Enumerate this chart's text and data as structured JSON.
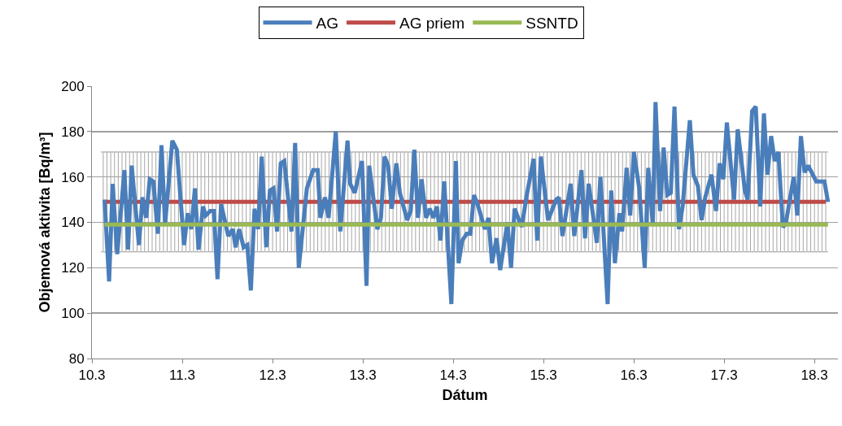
{
  "chart_data": {
    "type": "line",
    "xlabel": "Dátum",
    "ylabel": "Objemová aktivita [Bq/m³]",
    "xlim": [
      "--03-10",
      "--03-18T06:14"
    ],
    "xticks": [
      {
        "value": "--03-10",
        "label": "10.3"
      },
      {
        "value": "--03-11",
        "label": "11.3"
      },
      {
        "value": "--03-12",
        "label": "12.3"
      },
      {
        "value": "--03-13",
        "label": "13.3"
      },
      {
        "value": "--03-14",
        "label": "14.3"
      },
      {
        "value": "--03-15",
        "label": "15.3"
      },
      {
        "value": "--03-16",
        "label": "16.3"
      },
      {
        "value": "--03-17",
        "label": "17.3"
      },
      {
        "value": "--03-18",
        "label": "18.3"
      }
    ],
    "ylim": [
      80,
      200
    ],
    "yticks": [
      80,
      100,
      120,
      140,
      160,
      180,
      200
    ],
    "grid": "y",
    "legend": "top",
    "marker": "none",
    "line_style": "solid",
    "series": [
      {
        "name": "AG",
        "color": "#4a7ebb",
        "x": [
          "--03-10T03:22",
          "--03-10T04:34",
          "--03-10T05:31",
          "--03-10T06:43",
          "--03-10T08:38",
          "--03-10T09:36",
          "--03-10T10:34",
          "--03-10T12:29",
          "--03-10T13:26",
          "--03-10T14:24",
          "--03-10T15:22",
          "--03-10T16:19",
          "--03-10T17:31",
          "--03-10T18:29",
          "--03-10T19:26",
          "--03-10T21:22",
          "--03-10T22:34",
          "--03-11T00:29",
          "--03-11T01:26",
          "--03-11T02:24",
          "--03-11T03:22",
          "--03-11T04:19",
          "--03-11T05:31",
          "--03-11T06:14",
          "--03-11T07:26",
          "--03-11T08:24",
          "--03-11T09:22",
          "--03-11T10:19",
          "--03-11T12:14",
          "--03-11T13:26",
          "--03-11T14:10",
          "--03-11T15:07",
          "--03-11T16:19",
          "--03-11T17:17",
          "--03-11T18:14",
          "--03-11T19:12",
          "--03-11T20:10",
          "--03-11T21:07",
          "--03-11T22:19",
          "--03-11T23:17",
          "--03-12T00:14",
          "--03-12T01:12",
          "--03-12T02:10",
          "--03-12T03:07",
          "--03-12T05:02",
          "--03-12T06:00",
          "--03-12T06:58",
          "--03-12T09:07",
          "--03-12T10:48",
          "--03-12T12:00",
          "--03-12T12:43",
          "--03-12T13:55",
          "--03-12T14:53",
          "--03-12T16:48",
          "--03-12T18:00",
          "--03-12T19:55",
          "--03-12T20:38",
          "--03-12T21:50",
          "--03-12T23:46",
          "--03-13T00:58",
          "--03-13T01:41",
          "--03-13T03:50",
          "--03-13T04:48",
          "--03-13T05:46",
          "--03-13T06:43",
          "--03-13T07:41",
          "--03-13T08:53",
          "--03-13T09:50",
          "--03-13T11:46",
          "--03-13T12:43",
          "--03-13T13:41",
          "--03-13T14:38",
          "--03-13T15:36",
          "--03-13T16:48",
          "--03-13T17:46",
          "--03-13T18:43",
          "--03-13T19:41",
          "--03-13T20:38",
          "--03-13T21:36",
          "--03-13T23:31",
          "--03-14T00:43",
          "--03-14T01:26",
          "--03-14T02:24",
          "--03-14T03:36",
          "--03-14T04:34",
          "--03-14T05:31",
          "--03-14T06:29",
          "--03-14T08:24",
          "--03-14T09:22",
          "--03-14T10:19",
          "--03-14T11:31",
          "--03-14T12:29",
          "--03-14T14:24",
          "--03-14T15:22",
          "--03-14T16:19",
          "--03-14T18:14",
          "--03-14T19:26",
          "--03-14T21:22",
          "--03-14T22:19",
          "--03-14T23:17",
          "--03-15T01:12",
          "--03-15T03:22",
          "--03-15T04:05",
          "--03-15T05:02",
          "--03-15T07:12",
          "--03-15T08:10",
          "--03-15T10:05",
          "--03-15T11:02",
          "--03-15T12:00",
          "--03-15T14:10",
          "--03-15T15:07",
          "--03-15T17:02",
          "--03-15T18:00",
          "--03-15T18:58",
          "--03-15T20:10",
          "--03-15T20:53",
          "--03-15T22:05",
          "--03-15T23:02",
          "--03-16T00:00",
          "--03-16T01:26",
          "--03-16T02:53",
          "--03-16T03:50",
          "--03-16T05:02",
          "--03-16T05:46",
          "--03-16T06:58",
          "--03-16T07:55",
          "--03-16T08:53",
          "--03-16T09:50",
          "--03-16T10:48",
          "--03-16T12:00",
          "--03-16T12:58",
          "--03-16T14:53",
          "--03-16T15:50",
          "--03-16T17:02",
          "--03-16T18:00",
          "--03-16T18:58",
          "--03-16T20:38",
          "--03-16T21:50",
          "--03-16T22:48",
          "--03-16T23:46",
          "--03-17T00:43",
          "--03-17T02:38",
          "--03-17T03:36",
          "--03-17T05:31",
          "--03-17T06:14",
          "--03-17T07:26",
          "--03-17T08:24",
          "--03-17T09:36",
          "--03-17T10:34",
          "--03-17T11:31",
          "--03-17T12:29",
          "--03-17T13:26",
          "--03-17T14:24",
          "--03-17T15:36",
          "--03-17T16:19",
          "--03-17T18:29",
          "--03-17T19:26",
          "--03-17T20:24",
          "--03-17T21:22",
          "--03-17T22:19",
          "--03-18T00:29",
          "--03-18T02:38",
          "--03-18T03:36"
        ],
        "values": [
          150,
          114,
          157,
          126,
          163,
          128,
          165,
          130,
          151,
          142,
          159,
          158,
          135,
          174,
          139,
          176,
          172,
          130,
          144,
          137,
          155,
          128,
          147,
          143,
          145,
          145,
          115,
          148,
          134,
          137,
          129,
          137,
          129,
          130,
          110,
          146,
          137,
          169,
          129,
          154,
          155,
          136,
          166,
          167,
          136,
          175,
          120,
          155,
          163,
          163,
          142,
          151,
          142,
          180,
          136,
          176,
          157,
          153,
          167,
          112,
          165,
          137,
          142,
          169,
          165,
          146,
          166,
          153,
          141,
          145,
          172,
          142,
          159,
          142,
          146,
          142,
          147,
          132,
          158,
          104,
          167,
          122,
          132,
          135,
          135,
          152,
          148,
          137,
          142,
          122,
          133,
          119,
          140,
          120,
          146,
          138,
          151,
          168,
          132,
          169,
          141,
          150,
          151,
          134,
          157,
          134,
          163,
          133,
          157,
          131,
          160,
          104,
          154,
          122,
          144,
          136,
          164,
          143,
          171,
          155,
          120,
          164,
          139,
          193,
          145,
          173,
          152,
          153,
          191,
          137,
          147,
          185,
          161,
          156,
          141,
          151,
          161,
          145,
          166,
          159,
          184,
          150,
          181,
          154,
          150,
          189,
          191,
          147,
          188,
          161,
          178,
          167,
          171,
          138,
          139,
          160,
          143,
          178,
          162,
          165,
          158,
          158,
          149
        ]
      },
      {
        "name": "AG priem",
        "color": "#be4b48",
        "x": [
          "--03-10T03:00",
          "--03-10T04:00",
          "--03-10T05:00",
          "--03-10T06:00",
          "--03-10T07:00",
          "--03-10T08:00",
          "--03-10T09:00",
          "--03-10T10:00",
          "--03-10T11:00",
          "--03-10T12:00",
          "--03-10T13:00",
          "--03-10T14:00",
          "--03-10T15:00",
          "--03-10T16:00",
          "--03-10T17:00",
          "--03-10T18:00",
          "--03-10T19:00",
          "--03-10T20:00",
          "--03-10T21:00",
          "--03-10T22:00",
          "--03-10T23:00",
          "--03-11T00:00",
          "--03-11T01:00",
          "--03-11T02:00",
          "--03-11T03:00",
          "--03-11T04:00",
          "--03-11T05:00",
          "--03-11T06:00",
          "--03-11T07:00",
          "--03-11T08:00",
          "--03-11T09:00",
          "--03-11T10:00",
          "--03-11T11:00",
          "--03-11T12:00",
          "--03-11T13:00",
          "--03-11T14:00",
          "--03-11T15:00",
          "--03-11T16:00",
          "--03-11T17:00",
          "--03-11T18:00",
          "--03-11T19:00",
          "--03-11T20:00",
          "--03-11T21:00",
          "--03-11T22:00",
          "--03-11T23:00",
          "--03-12T00:00",
          "--03-12T01:00",
          "--03-12T02:00",
          "--03-12T03:00",
          "--03-12T04:00",
          "--03-12T05:00",
          "--03-12T06:00",
          "--03-12T07:00",
          "--03-12T08:00",
          "--03-12T09:00",
          "--03-12T10:00",
          "--03-12T11:00",
          "--03-12T12:00",
          "--03-12T13:00",
          "--03-12T14:00",
          "--03-12T15:00",
          "--03-12T16:00",
          "--03-12T17:00",
          "--03-12T18:00",
          "--03-12T19:00",
          "--03-12T20:00",
          "--03-12T21:00",
          "--03-12T22:00",
          "--03-12T23:00",
          "--03-13T00:00",
          "--03-13T01:00",
          "--03-13T02:00",
          "--03-13T03:00",
          "--03-13T04:00",
          "--03-13T05:00",
          "--03-13T06:00",
          "--03-13T07:00",
          "--03-13T08:00",
          "--03-13T09:00",
          "--03-13T10:00",
          "--03-13T11:00",
          "--03-13T12:00",
          "--03-13T13:00",
          "--03-13T14:00",
          "--03-13T15:00",
          "--03-13T16:00",
          "--03-13T17:00",
          "--03-13T18:00",
          "--03-13T19:00",
          "--03-13T20:00",
          "--03-13T21:00",
          "--03-13T22:00",
          "--03-13T23:00",
          "--03-14T00:00",
          "--03-14T01:00",
          "--03-14T02:00",
          "--03-14T03:00",
          "--03-14T04:00",
          "--03-14T05:00",
          "--03-14T06:00",
          "--03-14T07:00",
          "--03-14T08:00",
          "--03-14T09:00",
          "--03-14T10:00",
          "--03-14T11:00",
          "--03-14T12:00",
          "--03-14T13:00",
          "--03-14T14:00",
          "--03-14T15:00",
          "--03-14T16:00",
          "--03-14T17:00",
          "--03-14T18:00",
          "--03-14T19:00",
          "--03-14T20:00",
          "--03-14T21:00",
          "--03-14T22:00",
          "--03-14T23:00",
          "--03-15T00:00",
          "--03-15T01:00",
          "--03-15T02:00",
          "--03-15T03:00",
          "--03-15T04:00",
          "--03-15T05:00",
          "--03-15T06:00",
          "--03-15T07:00",
          "--03-15T08:00",
          "--03-15T09:00",
          "--03-15T10:00",
          "--03-15T11:00",
          "--03-15T12:00",
          "--03-15T13:00",
          "--03-15T14:00",
          "--03-15T15:00",
          "--03-15T16:00",
          "--03-15T17:00",
          "--03-15T18:00",
          "--03-15T19:00",
          "--03-15T20:00",
          "--03-15T21:00",
          "--03-15T22:00",
          "--03-15T23:00",
          "--03-16T00:00",
          "--03-16T01:00",
          "--03-16T02:00",
          "--03-16T03:00",
          "--03-16T04:00",
          "--03-16T05:00",
          "--03-16T06:00",
          "--03-16T07:00",
          "--03-16T08:00",
          "--03-16T09:00",
          "--03-16T10:00",
          "--03-16T11:00",
          "--03-16T12:00",
          "--03-16T13:00",
          "--03-16T14:00",
          "--03-16T15:00",
          "--03-16T16:00",
          "--03-16T17:00",
          "--03-16T18:00",
          "--03-16T19:00",
          "--03-16T20:00",
          "--03-16T21:00",
          "--03-16T22:00",
          "--03-16T23:00",
          "--03-17T00:00",
          "--03-17T01:00",
          "--03-17T02:00",
          "--03-17T03:00",
          "--03-17T04:00",
          "--03-17T05:00",
          "--03-17T06:00",
          "--03-17T07:00",
          "--03-17T08:00",
          "--03-17T09:00",
          "--03-17T10:00",
          "--03-17T11:00",
          "--03-17T12:00",
          "--03-17T13:00",
          "--03-17T14:00",
          "--03-17T15:00",
          "--03-17T16:00",
          "--03-17T17:00",
          "--03-17T18:00",
          "--03-17T19:00",
          "--03-17T20:00",
          "--03-17T21:00",
          "--03-17T22:00",
          "--03-17T23:00",
          "--03-18T00:00",
          "--03-18T01:00",
          "--03-18T02:00",
          "--03-18T03:00"
        ],
        "values": [
          149,
          149,
          149,
          149,
          149,
          149,
          149,
          149,
          149,
          149,
          149,
          149,
          149,
          149,
          149,
          149,
          149,
          149,
          149,
          149,
          149,
          149,
          149,
          149,
          149,
          149,
          149,
          149,
          149,
          149,
          149,
          149,
          149,
          149,
          149,
          149,
          149,
          149,
          149,
          149,
          149,
          149,
          149,
          149,
          149,
          149,
          149,
          149,
          149,
          149,
          149,
          149,
          149,
          149,
          149,
          149,
          149,
          149,
          149,
          149,
          149,
          149,
          149,
          149,
          149,
          149,
          149,
          149,
          149,
          149,
          149,
          149,
          149,
          149,
          149,
          149,
          149,
          149,
          149,
          149,
          149,
          149,
          149,
          149,
          149,
          149,
          149,
          149,
          149,
          149,
          149,
          149,
          149,
          149,
          149,
          149,
          149,
          149,
          149,
          149,
          149,
          149,
          149,
          149,
          149,
          149,
          149,
          149,
          149,
          149,
          149,
          149,
          149,
          149,
          149,
          149,
          149,
          149,
          149,
          149,
          149,
          149,
          149,
          149,
          149,
          149,
          149,
          149,
          149,
          149,
          149,
          149,
          149,
          149,
          149,
          149,
          149,
          149,
          149,
          149,
          149,
          149,
          149,
          149,
          149,
          149,
          149,
          149,
          149,
          149,
          149,
          149,
          149,
          149,
          149,
          149,
          149,
          149,
          149,
          149,
          149,
          149,
          149,
          149,
          149,
          149,
          149,
          149,
          149,
          149,
          149,
          149,
          149,
          149,
          149,
          149,
          149,
          149,
          149,
          149,
          149,
          149,
          149,
          149,
          149,
          149,
          149,
          149,
          149,
          149,
          149,
          149,
          149
        ],
        "errors": [
          22,
          22,
          22,
          22,
          22,
          22,
          22,
          22,
          22,
          22,
          22,
          22,
          22,
          22,
          22,
          22,
          22,
          22,
          22,
          22,
          22,
          22,
          22,
          22,
          22,
          22,
          22,
          22,
          22,
          22,
          22,
          22,
          22,
          22,
          22,
          22,
          22,
          22,
          22,
          22,
          22,
          22,
          22,
          22,
          22,
          22,
          22,
          22,
          22,
          22,
          22,
          22,
          22,
          22,
          22,
          22,
          22,
          22,
          22,
          22,
          22,
          22,
          22,
          22,
          22,
          22,
          22,
          22,
          22,
          22,
          22,
          22,
          22,
          22,
          22,
          22,
          22,
          22,
          22,
          22,
          22,
          22,
          22,
          22,
          22,
          22,
          22,
          22,
          22,
          22,
          22,
          22,
          22,
          22,
          22,
          22,
          22,
          22,
          22,
          22,
          22,
          22,
          22,
          22,
          22,
          22,
          22,
          22,
          22,
          22,
          22,
          22,
          22,
          22,
          22,
          22,
          22,
          22,
          22,
          22,
          22,
          22,
          22,
          22,
          22,
          22,
          22,
          22,
          22,
          22,
          22,
          22,
          22,
          22,
          22,
          22,
          22,
          22,
          22,
          22,
          22,
          22,
          22,
          22,
          22,
          22,
          22,
          22,
          22,
          22,
          22,
          22,
          22,
          22,
          22,
          22,
          22,
          22,
          22,
          22,
          22,
          22,
          22,
          22,
          22,
          22,
          22,
          22,
          22,
          22,
          22,
          22,
          22,
          22,
          22,
          22,
          22,
          22,
          22,
          22,
          22,
          22,
          22,
          22,
          22,
          22,
          22,
          22,
          22,
          22,
          22,
          22,
          22
        ]
      },
      {
        "name": "SSNTD",
        "color": "#98b954",
        "x": [
          "--03-10T03:22",
          "--03-18T03:36"
        ],
        "values": [
          139,
          139
        ]
      }
    ]
  }
}
